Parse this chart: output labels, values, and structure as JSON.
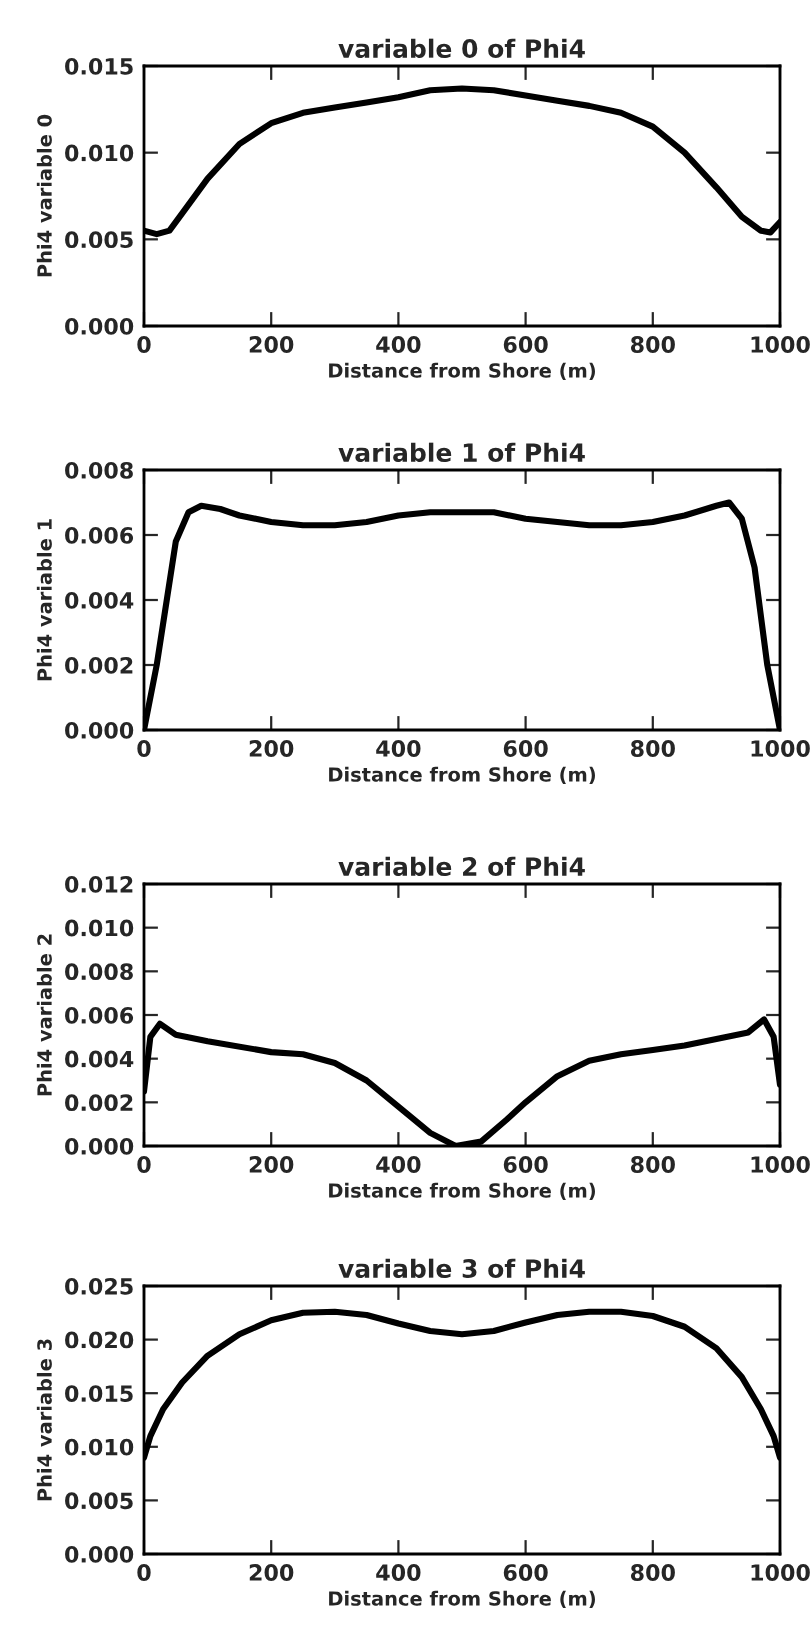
{
  "chart_data": [
    {
      "type": "line",
      "title": "variable 0 of Phi4",
      "xlabel": "Distance from Shore (m)",
      "ylabel": "Phi4 variable 0",
      "xlim": [
        0,
        1000
      ],
      "xticks": [
        0,
        200,
        400,
        600,
        800,
        1000
      ],
      "ylim": [
        0,
        0.015
      ],
      "yticks": [
        {
          "value": 0,
          "label": "0.000"
        },
        {
          "value": 0.005,
          "label": "0.005"
        },
        {
          "value": 0.01,
          "label": "0.010"
        },
        {
          "value": 0.015,
          "label": "0.015"
        }
      ],
      "grid": false,
      "legend": false,
      "line_style": "solid",
      "series": [
        {
          "color": "#000000",
          "x": [
            0,
            20,
            40,
            60,
            100,
            150,
            200,
            250,
            300,
            350,
            400,
            450,
            500,
            550,
            600,
            650,
            700,
            750,
            800,
            850,
            900,
            940,
            970,
            985,
            1000
          ],
          "values": [
            0.0055,
            0.0053,
            0.0055,
            0.0065,
            0.0085,
            0.0105,
            0.0117,
            0.0123,
            0.0126,
            0.0129,
            0.0132,
            0.0136,
            0.0137,
            0.0136,
            0.0133,
            0.013,
            0.0127,
            0.0123,
            0.0115,
            0.01,
            0.008,
            0.0063,
            0.0055,
            0.0054,
            0.006
          ]
        }
      ]
    },
    {
      "type": "line",
      "title": "variable 1 of Phi4",
      "xlabel": "Distance from Shore (m)",
      "ylabel": "Phi4 variable 1",
      "xlim": [
        0,
        1000
      ],
      "xticks": [
        0,
        200,
        400,
        600,
        800,
        1000
      ],
      "ylim": [
        0,
        0.008
      ],
      "yticks": [
        {
          "value": 0,
          "label": "0.000"
        },
        {
          "value": 0.002,
          "label": "0.002"
        },
        {
          "value": 0.004,
          "label": "0.004"
        },
        {
          "value": 0.006,
          "label": "0.006"
        },
        {
          "value": 0.008,
          "label": "0.008"
        }
      ],
      "grid": false,
      "legend": false,
      "line_style": "solid",
      "series": [
        {
          "color": "#000000",
          "x": [
            0,
            20,
            50,
            70,
            90,
            120,
            150,
            200,
            250,
            300,
            350,
            400,
            450,
            500,
            550,
            600,
            650,
            700,
            750,
            800,
            850,
            900,
            920,
            940,
            960,
            980,
            1000
          ],
          "values": [
            0.0,
            0.002,
            0.0058,
            0.0067,
            0.0069,
            0.0068,
            0.0066,
            0.0064,
            0.0063,
            0.0063,
            0.0064,
            0.0066,
            0.0067,
            0.0067,
            0.0067,
            0.0065,
            0.0064,
            0.0063,
            0.0063,
            0.0064,
            0.0066,
            0.0069,
            0.007,
            0.0065,
            0.005,
            0.002,
            0.0
          ]
        }
      ]
    },
    {
      "type": "line",
      "title": "variable 2 of Phi4",
      "xlabel": "Distance from Shore (m)",
      "ylabel": "Phi4 variable 2",
      "xlim": [
        0,
        1000
      ],
      "xticks": [
        0,
        200,
        400,
        600,
        800,
        1000
      ],
      "ylim": [
        0,
        0.012
      ],
      "yticks": [
        {
          "value": 0,
          "label": "0.000"
        },
        {
          "value": 0.002,
          "label": "0.002"
        },
        {
          "value": 0.004,
          "label": "0.004"
        },
        {
          "value": 0.006,
          "label": "0.006"
        },
        {
          "value": 0.008,
          "label": "0.008"
        },
        {
          "value": 0.01,
          "label": "0.010"
        },
        {
          "value": 0.012,
          "label": "0.012"
        }
      ],
      "grid": false,
      "legend": false,
      "line_style": "solid",
      "series": [
        {
          "color": "#000000",
          "x": [
            0,
            10,
            25,
            50,
            100,
            200,
            250,
            300,
            350,
            400,
            450,
            490,
            530,
            570,
            600,
            650,
            700,
            750,
            800,
            850,
            900,
            950,
            975,
            990,
            1000
          ],
          "values": [
            0.0025,
            0.005,
            0.0056,
            0.0051,
            0.0048,
            0.0043,
            0.0042,
            0.0038,
            0.003,
            0.0018,
            0.0006,
            0.0,
            0.0002,
            0.0012,
            0.002,
            0.0032,
            0.0039,
            0.0042,
            0.0044,
            0.0046,
            0.0049,
            0.0052,
            0.0058,
            0.005,
            0.0028
          ]
        }
      ]
    },
    {
      "type": "line",
      "title": "variable 3 of Phi4",
      "xlabel": "Distance from Shore (m)",
      "ylabel": "Phi4 variable 3",
      "xlim": [
        0,
        1000
      ],
      "xticks": [
        0,
        200,
        400,
        600,
        800,
        1000
      ],
      "ylim": [
        0,
        0.025
      ],
      "yticks": [
        {
          "value": 0,
          "label": "0.000"
        },
        {
          "value": 0.005,
          "label": "0.005"
        },
        {
          "value": 0.01,
          "label": "0.010"
        },
        {
          "value": 0.015,
          "label": "0.015"
        },
        {
          "value": 0.02,
          "label": "0.020"
        },
        {
          "value": 0.025,
          "label": "0.025"
        }
      ],
      "grid": false,
      "legend": false,
      "line_style": "solid",
      "series": [
        {
          "color": "#000000",
          "x": [
            0,
            10,
            30,
            60,
            100,
            150,
            200,
            250,
            300,
            350,
            400,
            450,
            500,
            550,
            600,
            650,
            700,
            750,
            800,
            850,
            900,
            940,
            970,
            990,
            1000
          ],
          "values": [
            0.009,
            0.011,
            0.0135,
            0.016,
            0.0185,
            0.0205,
            0.0218,
            0.0225,
            0.0226,
            0.0223,
            0.0215,
            0.0208,
            0.0205,
            0.0208,
            0.0216,
            0.0223,
            0.0226,
            0.0226,
            0.0222,
            0.0212,
            0.0192,
            0.0165,
            0.0135,
            0.011,
            0.009
          ]
        }
      ]
    }
  ]
}
